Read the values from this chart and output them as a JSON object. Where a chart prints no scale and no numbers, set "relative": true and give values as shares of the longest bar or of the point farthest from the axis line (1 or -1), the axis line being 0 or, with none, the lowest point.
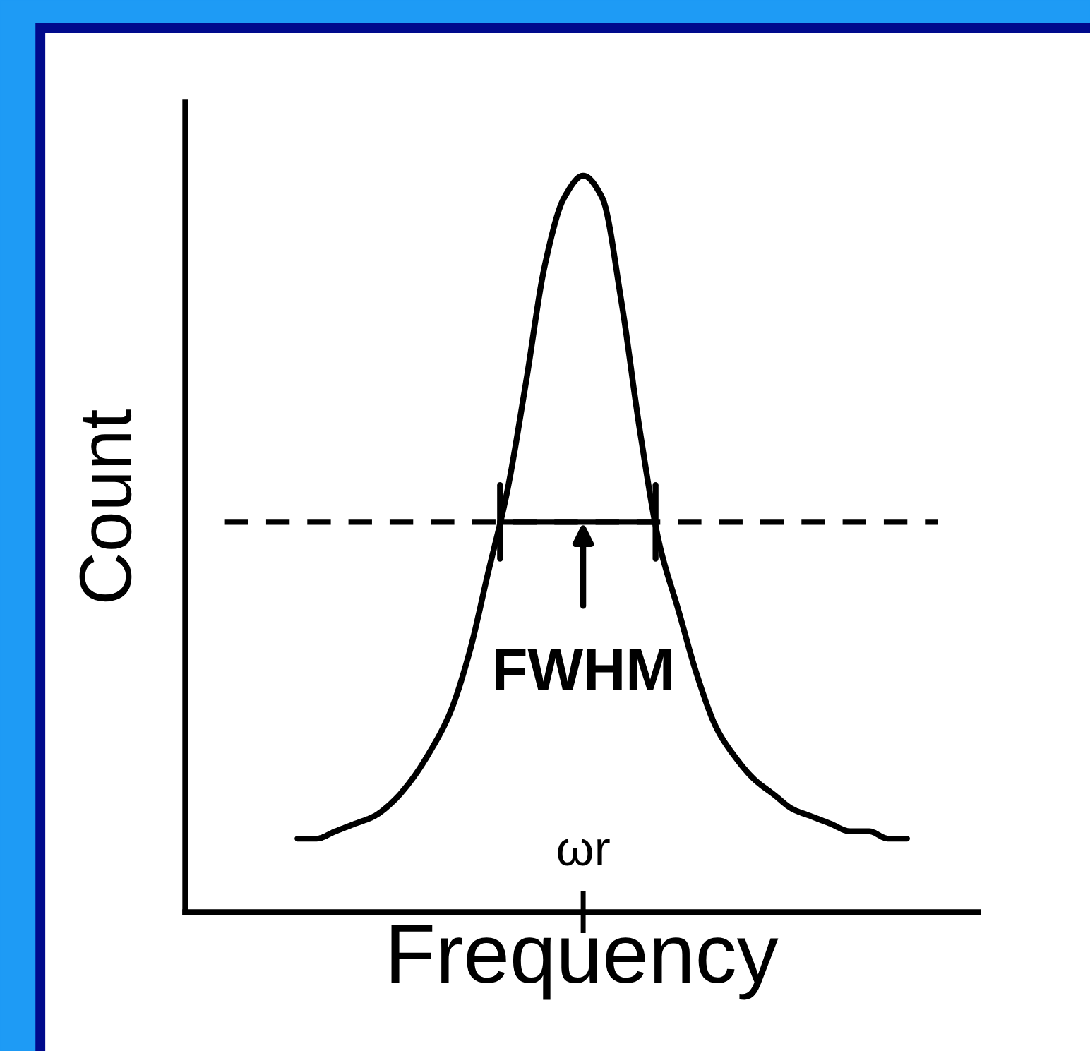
{
  "chart_data": {
    "type": "line",
    "relative": true,
    "xlabel": "Frequency",
    "ylabel": "Count",
    "categories": [
      null,
      null,
      null,
      null,
      null,
      null,
      null,
      null,
      null,
      null,
      null,
      null,
      null,
      null,
      null,
      null,
      null,
      null,
      null,
      null,
      null,
      null,
      null,
      null,
      null,
      null,
      null,
      null,
      null,
      null,
      null,
      null,
      null
    ],
    "series": [
      {
        "color": "#000000",
        "values": [
          0.1,
          0.1,
          0.11,
          0.12,
          0.13,
          0.15,
          0.18,
          0.22,
          0.27,
          0.35,
          0.46,
          0.57,
          0.72,
          0.88,
          0.97,
          1.0,
          0.97,
          0.83,
          0.65,
          0.5,
          0.41,
          0.32,
          0.25,
          0.21,
          0.18,
          0.16,
          0.14,
          0.13,
          0.12,
          0.11,
          0.11,
          0.1,
          0.1
        ]
      }
    ],
    "ref_lines": [
      {
        "axis": "y",
        "value": 0.53,
        "color": "#000000",
        "line_style": "dashed"
      }
    ],
    "annotations": [
      {
        "text": "FWHM",
        "y": 0.53
      },
      "ωr"
    ],
    "legend": false
  }
}
